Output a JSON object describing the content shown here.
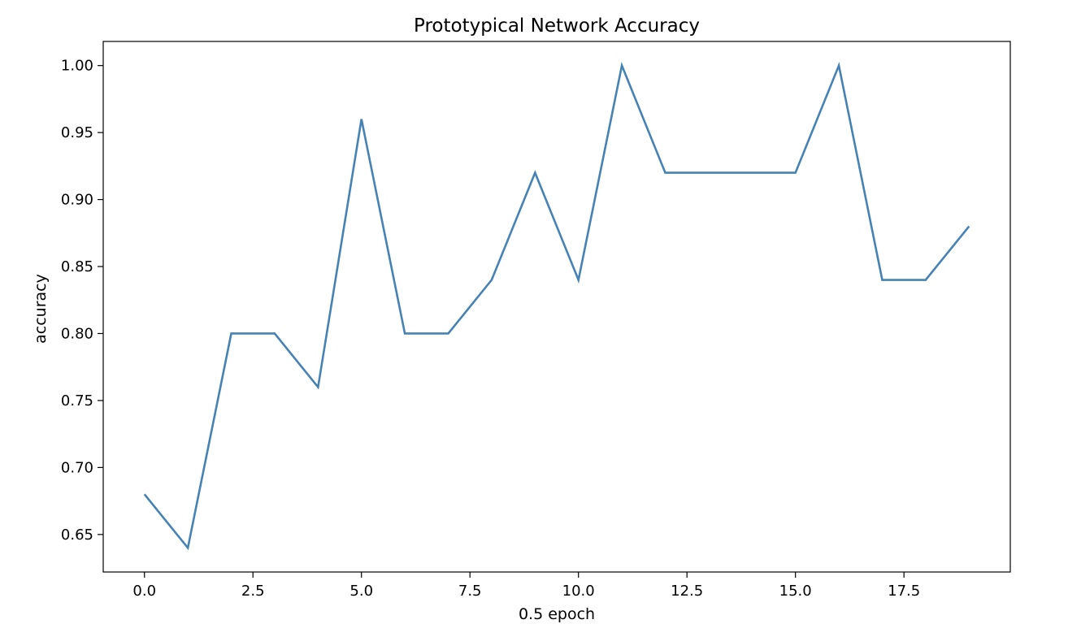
{
  "chart_data": {
    "type": "line",
    "title": "Prototypical Network Accuracy",
    "xlabel": "0.5 epoch",
    "ylabel": "accuracy",
    "xlim": [
      -0.95,
      19.95
    ],
    "ylim": [
      0.622,
      1.018
    ],
    "xticks": [
      0.0,
      2.5,
      5.0,
      7.5,
      10.0,
      12.5,
      15.0,
      17.5
    ],
    "xtick_labels": [
      "0.0",
      "2.5",
      "5.0",
      "7.5",
      "10.0",
      "12.5",
      "15.0",
      "17.5"
    ],
    "yticks": [
      0.65,
      0.7,
      0.75,
      0.8,
      0.85,
      0.9,
      0.95,
      1.0
    ],
    "ytick_labels": [
      "0.65",
      "0.70",
      "0.75",
      "0.80",
      "0.85",
      "0.90",
      "0.95",
      "1.00"
    ],
    "grid": false,
    "line_color": "#4682b4",
    "series": [
      {
        "x": [
          0,
          1,
          2,
          3,
          4,
          5,
          6,
          7,
          8,
          9,
          10,
          11,
          12,
          13,
          14,
          15,
          16,
          17,
          18,
          19
        ],
        "values": [
          0.68,
          0.64,
          0.8,
          0.8,
          0.76,
          0.96,
          0.8,
          0.8,
          0.84,
          0.92,
          0.84,
          1.0,
          0.92,
          0.92,
          0.92,
          0.92,
          1.0,
          0.84,
          0.84,
          0.88
        ]
      }
    ]
  }
}
